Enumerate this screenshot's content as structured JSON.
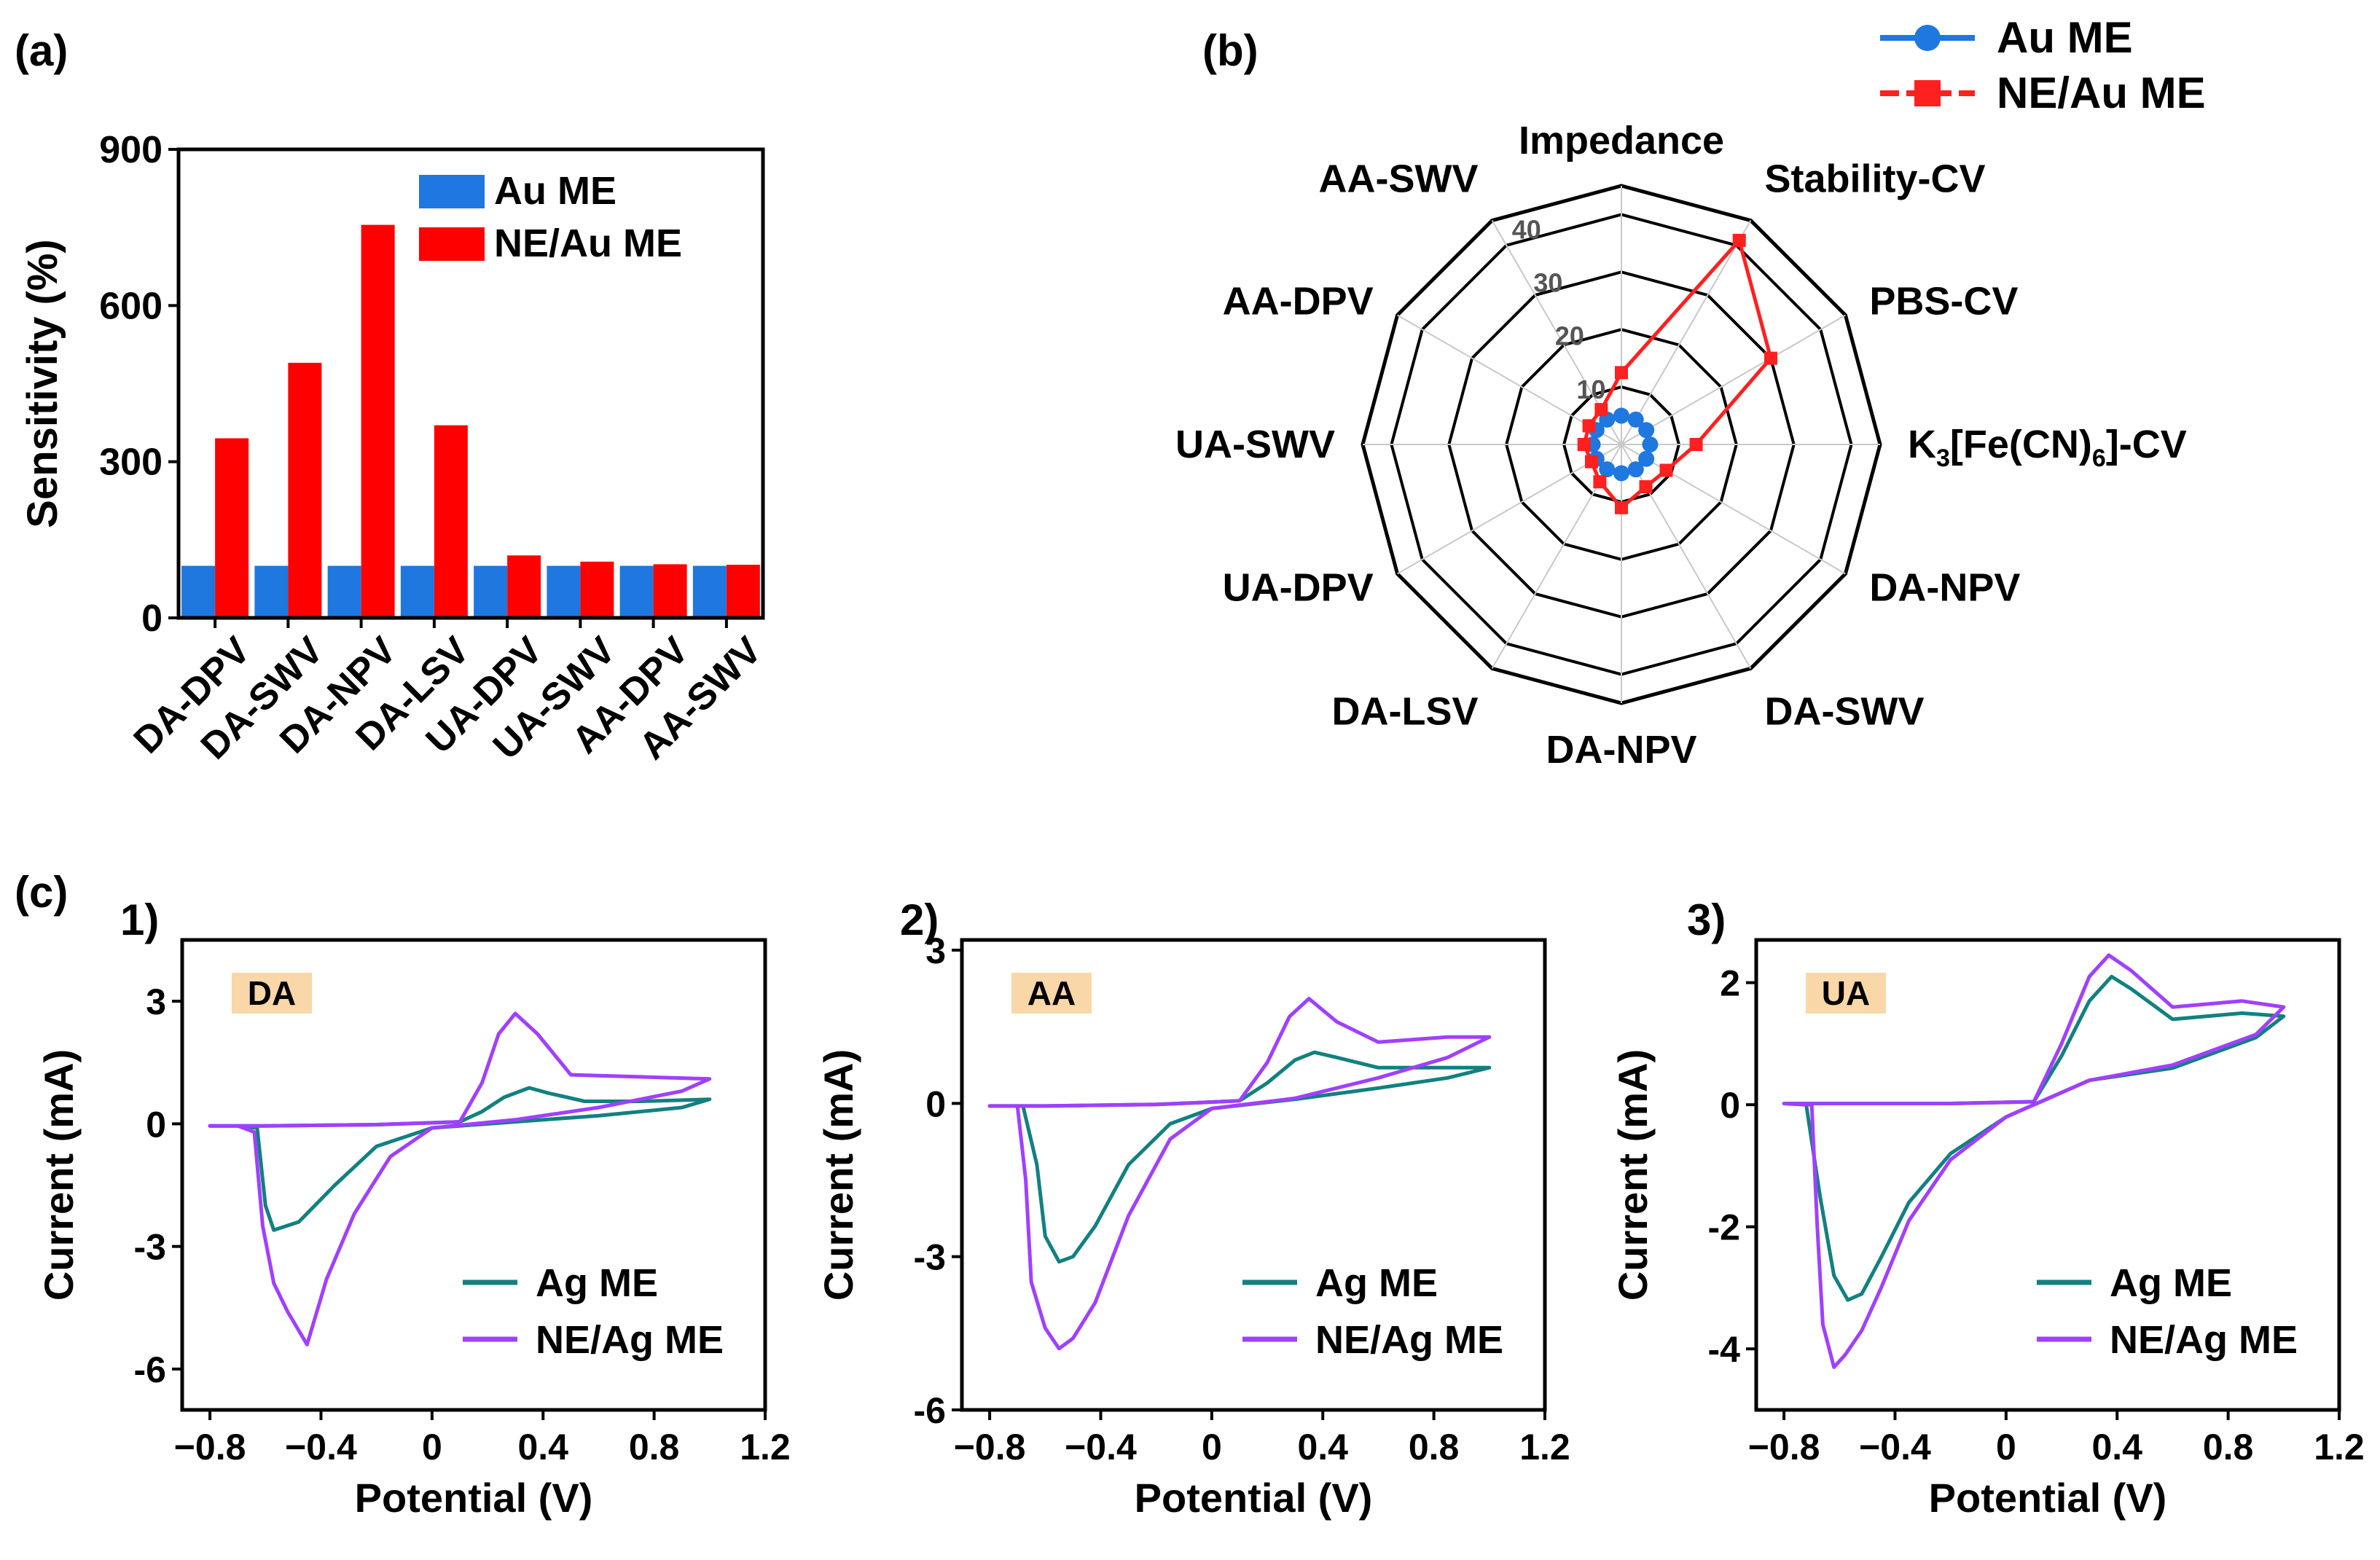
{
  "panel_labels": {
    "a": "(a)",
    "b": "(b)",
    "c": "(c)",
    "c1": "1)",
    "c2": "2)",
    "c3": "3)"
  },
  "colors": {
    "au": "#1f77e0",
    "ne_au": "#ff0000",
    "radar_au": "#1f77e0",
    "radar_ne": "#ff2020",
    "ag": "#138080",
    "ne_ag": "#a040ff",
    "tag_bg": "#fad7a8"
  },
  "chart_data": [
    {
      "id": "a",
      "type": "bar",
      "title": "",
      "xlabel": "",
      "ylabel": "Sensitivity (%)",
      "ylim": [
        0,
        900
      ],
      "yticks": [
        0,
        300,
        600,
        900
      ],
      "categories": [
        "DA-DPV",
        "DA-SWV",
        "DA-NPV",
        "DA-LSV",
        "UA-DPV",
        "UA-SWV",
        "AA-DPV",
        "AA-SWV"
      ],
      "series": [
        {
          "name": "Au ME",
          "values": [
            100,
            100,
            100,
            100,
            100,
            100,
            100,
            100
          ]
        },
        {
          "name": "NE/Au ME",
          "values": [
            345,
            490,
            755,
            370,
            120,
            108,
            103,
            102
          ]
        }
      ],
      "legend": "top-right"
    },
    {
      "id": "b",
      "type": "radar",
      "axes": [
        "Impedance",
        "Stability-CV",
        "PBS-CV",
        "K3[Fe(CN)6]-CV",
        "DA-NPV",
        "DA-SWV",
        "DA-NPV",
        "DA-LSV",
        "UA-DPV",
        "UA-SWV",
        "AA-DPV",
        "AA-SWV"
      ],
      "rlim": [
        0,
        45
      ],
      "rings": [
        10,
        20,
        30,
        40,
        45
      ],
      "ring_labels": [
        "10",
        "20",
        "30",
        "40"
      ],
      "series": [
        {
          "name": "Au ME",
          "values": [
            5,
            5,
            5,
            5,
            5,
            5,
            5,
            5,
            5,
            5,
            5,
            5
          ]
        },
        {
          "name": "NE/Au ME",
          "values": [
            12.5,
            41,
            30,
            13,
            9,
            8.5,
            11,
            7.5,
            6,
            6.5,
            6.5,
            7
          ]
        }
      ],
      "legend": "top-right"
    },
    {
      "id": "c1",
      "type": "line",
      "tag": "DA",
      "xlabel": "Potential (V)",
      "ylabel": "Current (mA)",
      "xlim": [
        -0.9,
        1.2
      ],
      "ylim": [
        -7,
        4.5
      ],
      "xticks": [
        -0.8,
        -0.4,
        0,
        0.4,
        0.8,
        1.2
      ],
      "xtick_labels": [
        "−0.8",
        "−0.4",
        "0",
        "0.4",
        "0.8",
        "1.2"
      ],
      "yticks": [
        -6,
        -3,
        0,
        3
      ],
      "ytick_labels": [
        "-6",
        "-3",
        "0",
        "3"
      ],
      "series": [
        {
          "name": "Ag ME",
          "x": [
            -0.8,
            -0.6,
            -0.2,
            0.1,
            0.18,
            0.26,
            0.35,
            0.42,
            0.55,
            0.75,
            1.0,
            0.9,
            0.6,
            0.3,
            0.0,
            -0.2,
            -0.35,
            -0.48,
            -0.57,
            -0.6,
            -0.63,
            -0.7,
            -0.8
          ],
          "y": [
            -0.05,
            -0.05,
            -0.02,
            0.05,
            0.3,
            0.65,
            0.88,
            0.75,
            0.55,
            0.55,
            0.6,
            0.4,
            0.2,
            0.05,
            -0.1,
            -0.55,
            -1.5,
            -2.4,
            -2.6,
            -2.0,
            -0.1,
            -0.05,
            -0.05
          ]
        },
        {
          "name": "NE/Ag ME",
          "x": [
            -0.8,
            -0.6,
            -0.2,
            0.1,
            0.18,
            0.24,
            0.3,
            0.38,
            0.5,
            0.75,
            1.0,
            0.9,
            0.6,
            0.3,
            0.0,
            -0.15,
            -0.28,
            -0.38,
            -0.45,
            -0.52,
            -0.57,
            -0.61,
            -0.64,
            -0.7,
            -0.8
          ],
          "y": [
            -0.05,
            -0.05,
            -0.02,
            0.05,
            1.0,
            2.2,
            2.7,
            2.2,
            1.2,
            1.15,
            1.1,
            0.8,
            0.4,
            0.1,
            -0.1,
            -0.8,
            -2.2,
            -3.8,
            -5.4,
            -4.6,
            -3.9,
            -2.5,
            -0.2,
            -0.05,
            -0.05
          ]
        }
      ],
      "legend": "bottom-right"
    },
    {
      "id": "c2",
      "type": "line",
      "tag": "AA",
      "xlabel": "Potential (V)",
      "ylabel": "Current (mA)",
      "xlim": [
        -0.9,
        1.2
      ],
      "ylim": [
        -6,
        3.2
      ],
      "xticks": [
        -0.8,
        -0.4,
        0,
        0.4,
        0.8,
        1.2
      ],
      "xtick_labels": [
        "−0.8",
        "−0.4",
        "0",
        "0.4",
        "0.8",
        "1.2"
      ],
      "yticks": [
        -6,
        -3,
        0,
        3
      ],
      "ytick_labels": [
        "-6",
        "-3",
        "0",
        "3"
      ],
      "series": [
        {
          "name": "Ag ME",
          "x": [
            -0.8,
            -0.6,
            -0.2,
            0.1,
            0.2,
            0.3,
            0.37,
            0.45,
            0.6,
            0.85,
            1.0,
            0.85,
            0.6,
            0.3,
            0.0,
            -0.15,
            -0.3,
            -0.42,
            -0.5,
            -0.55,
            -0.6,
            -0.63,
            -0.68,
            -0.8
          ],
          "y": [
            -0.05,
            -0.05,
            -0.02,
            0.05,
            0.4,
            0.85,
            1.0,
            0.9,
            0.7,
            0.7,
            0.7,
            0.5,
            0.3,
            0.08,
            -0.1,
            -0.4,
            -1.2,
            -2.4,
            -3.0,
            -3.1,
            -2.6,
            -1.2,
            -0.05,
            -0.05
          ]
        },
        {
          "name": "NE/Ag ME",
          "x": [
            -0.8,
            -0.6,
            -0.2,
            0.1,
            0.2,
            0.28,
            0.35,
            0.45,
            0.6,
            0.85,
            1.0,
            0.85,
            0.6,
            0.3,
            0.0,
            -0.15,
            -0.3,
            -0.42,
            -0.5,
            -0.55,
            -0.6,
            -0.65,
            -0.67,
            -0.7,
            -0.8
          ],
          "y": [
            -0.05,
            -0.05,
            -0.02,
            0.05,
            0.8,
            1.7,
            2.05,
            1.6,
            1.2,
            1.3,
            1.3,
            0.9,
            0.5,
            0.1,
            -0.1,
            -0.7,
            -2.2,
            -3.9,
            -4.6,
            -4.8,
            -4.4,
            -3.5,
            -1.5,
            -0.05,
            -0.05
          ]
        }
      ],
      "legend": "bottom-right"
    },
    {
      "id": "c3",
      "type": "line",
      "tag": "UA",
      "xlabel": "Potential (V)",
      "ylabel": "Current (mA)",
      "xlim": [
        -0.9,
        1.2
      ],
      "ylim": [
        -5,
        2.7
      ],
      "xticks": [
        -0.8,
        -0.4,
        0,
        0.4,
        0.8,
        1.2
      ],
      "xtick_labels": [
        "−0.8",
        "−0.4",
        "0",
        "0.4",
        "0.8",
        "1.2"
      ],
      "yticks": [
        -4,
        -2,
        0,
        2
      ],
      "ytick_labels": [
        "-4",
        "-2",
        "0",
        "2"
      ],
      "series": [
        {
          "name": "Ag ME",
          "x": [
            -0.8,
            -0.6,
            -0.2,
            0.1,
            0.2,
            0.3,
            0.38,
            0.45,
            0.6,
            0.85,
            1.0,
            0.9,
            0.6,
            0.3,
            0.0,
            -0.2,
            -0.35,
            -0.45,
            -0.52,
            -0.57,
            -0.62,
            -0.67,
            -0.72,
            -0.8
          ],
          "y": [
            0.02,
            0.02,
            0.02,
            0.05,
            0.8,
            1.7,
            2.1,
            1.9,
            1.4,
            1.5,
            1.45,
            1.1,
            0.6,
            0.4,
            -0.2,
            -0.8,
            -1.6,
            -2.5,
            -3.1,
            -3.2,
            -2.8,
            -1.5,
            0.0,
            0.02
          ]
        },
        {
          "name": "NE/Ag ME",
          "x": [
            -0.8,
            -0.6,
            -0.2,
            0.1,
            0.2,
            0.3,
            0.37,
            0.45,
            0.6,
            0.85,
            1.0,
            0.9,
            0.6,
            0.3,
            0.0,
            -0.2,
            -0.35,
            -0.45,
            -0.52,
            -0.58,
            -0.62,
            -0.66,
            -0.68,
            -0.7,
            -0.8
          ],
          "y": [
            0.02,
            0.02,
            0.02,
            0.05,
            1.0,
            2.1,
            2.45,
            2.2,
            1.6,
            1.7,
            1.6,
            1.15,
            0.65,
            0.4,
            -0.2,
            -0.9,
            -1.9,
            -3.0,
            -3.7,
            -4.1,
            -4.3,
            -3.6,
            -2.0,
            0.0,
            0.02
          ]
        }
      ],
      "legend": "bottom-right"
    }
  ]
}
